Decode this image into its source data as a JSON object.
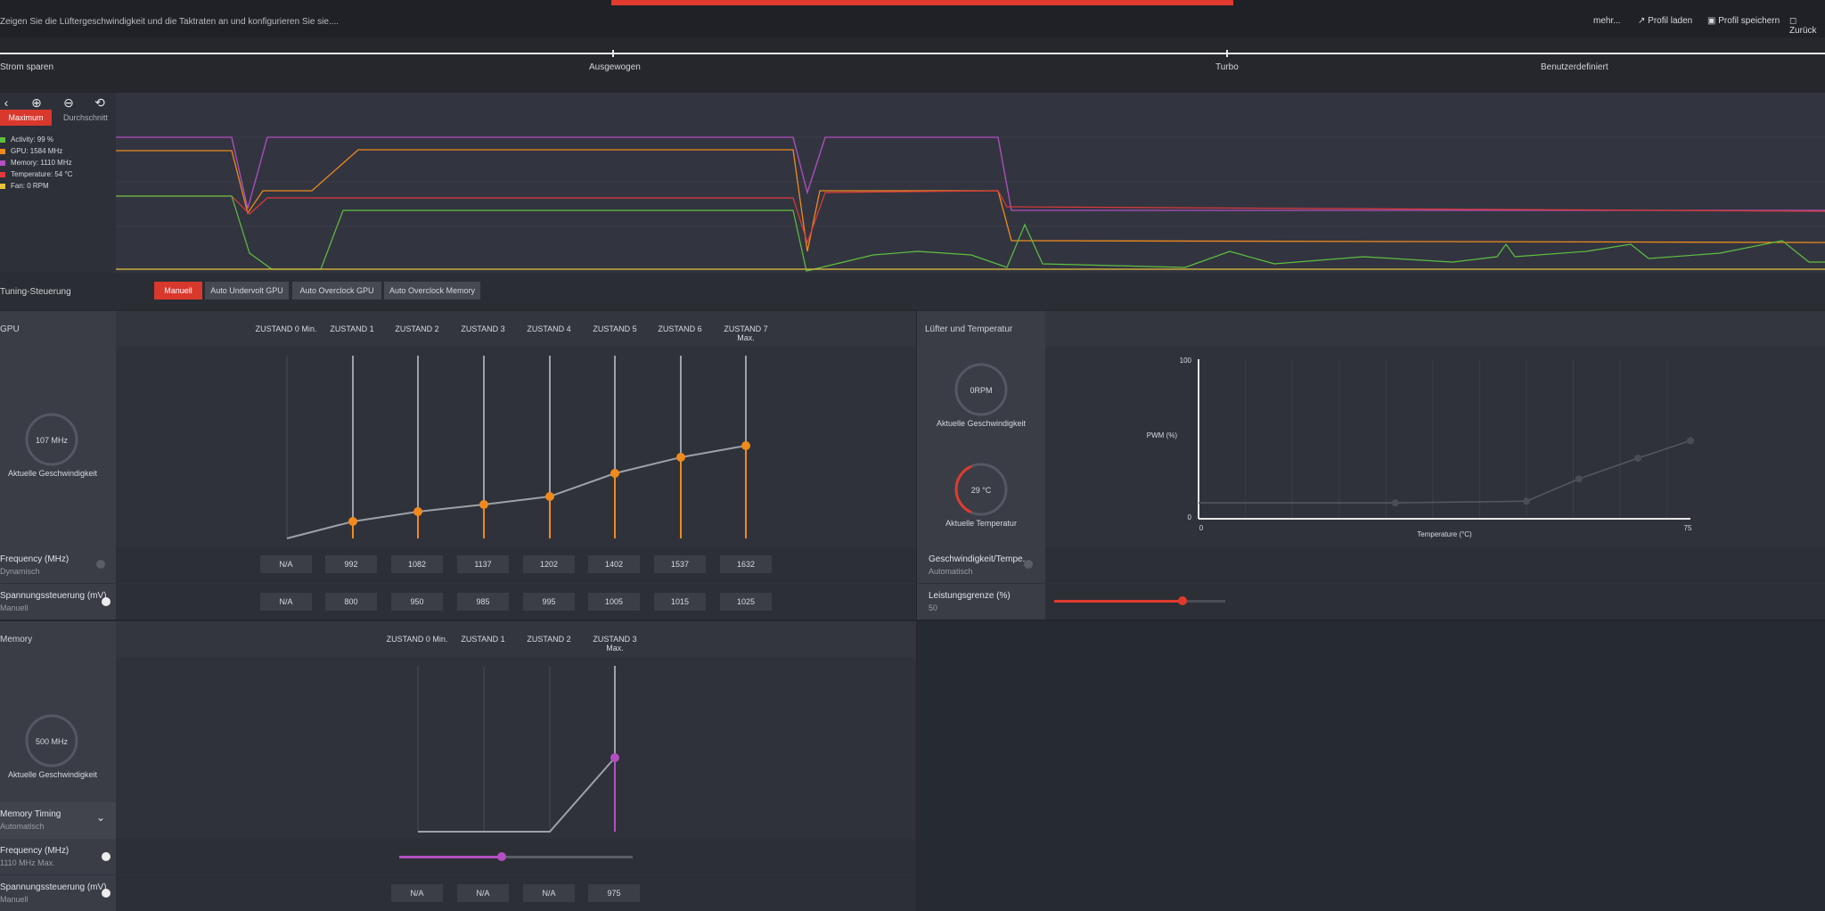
{
  "header": {
    "description": "Zeigen Sie die Lüftergeschwindigkeit und die Taktraten an und konfigurieren Sie sie....",
    "more_label": "mehr...",
    "load_profile_label": "Profil laden",
    "save_profile_label": "Profil speichern",
    "back_label": "Zurück"
  },
  "presets": [
    "Strom sparen",
    "Ausgewogen",
    "Turbo",
    "Benutzerdefiniert"
  ],
  "monitor": {
    "tabs": {
      "max": "Maximum",
      "avg": "Durchschnitt"
    },
    "legend": [
      {
        "label": "Activity: 99 %",
        "color": "#5fbf3f"
      },
      {
        "label": "GPU: 1584 MHz",
        "color": "#f08a1c"
      },
      {
        "label": "Memory: 1110 MHz",
        "color": "#b34fc0"
      },
      {
        "label": "Temperature: 54 °C",
        "color": "#e03a3a"
      },
      {
        "label": "Fan: 0 RPM",
        "color": "#e8c23a"
      }
    ]
  },
  "tuning": {
    "title": "Tuning-Steuerung",
    "buttons": [
      "Manuell",
      "Auto Undervolt GPU",
      "Auto Overclock GPU",
      "Auto Overclock Memory"
    ],
    "active": 0
  },
  "gpu": {
    "title": "GPU",
    "states": [
      "ZUSTAND 0 Min.",
      "ZUSTAND 1",
      "ZUSTAND 2",
      "ZUSTAND 3",
      "ZUSTAND 4",
      "ZUSTAND 5",
      "ZUSTAND 6",
      "ZUSTAND 7 Max."
    ],
    "gauge_value": "107 MHz",
    "gauge_label": "Aktuelle Geschwindigkeit",
    "frequency_label": "Frequency (MHz)",
    "frequency_mode": "Dynamisch",
    "frequencies": [
      "N/A",
      "992",
      "1082",
      "1137",
      "1202",
      "1402",
      "1537",
      "1632"
    ],
    "voltage_label": "Spannungssteuerung (mV)",
    "voltage_mode": "Manuell",
    "voltages": [
      "N/A",
      "800",
      "950",
      "985",
      "995",
      "1005",
      "1015",
      "1025"
    ]
  },
  "memory": {
    "title": "Memory",
    "states": [
      "ZUSTAND 0 Min.",
      "ZUSTAND 1",
      "ZUSTAND 2",
      "ZUSTAND 3 Max."
    ],
    "gauge_value": "500 MHz",
    "gauge_label": "Aktuelle Geschwindigkeit",
    "timing_label": "Memory Timing",
    "timing_mode": "Automatisch",
    "frequency_label": "Frequency (MHz)",
    "frequency_mode": "1110 MHz Max.",
    "frequency_slider_fraction": 0.44,
    "voltage_label": "Spannungssteuerung (mV)",
    "voltage_mode": "Manuell",
    "voltages": [
      "N/A",
      "N/A",
      "N/A",
      "975"
    ]
  },
  "fan": {
    "title": "Lüfter und Temperatur",
    "speed_value": "0RPM",
    "speed_label": "Aktuelle Geschwindigkeit",
    "temp_value": "29 °C",
    "temp_label": "Aktuelle Temperatur",
    "temp_fraction": 0.35,
    "curve_label": "Geschwindigkeit/Tempe...",
    "curve_mode": "Automatisch",
    "power_label": "Leistungsgrenze (%)",
    "power_value": "50",
    "power_fraction": 0.75
  },
  "chart_data": {
    "type": "line",
    "xlabel": "Temperature (°C)",
    "ylabel": "PWM (%)",
    "xlim": [
      0,
      75
    ],
    "ylim": [
      0,
      100
    ],
    "x_ticks": [
      "0",
      "75"
    ],
    "y_ticks": [
      "0",
      "100"
    ],
    "x": [
      0,
      30,
      50,
      58,
      67,
      75
    ],
    "values": [
      10,
      10,
      11,
      25,
      38,
      49
    ]
  }
}
